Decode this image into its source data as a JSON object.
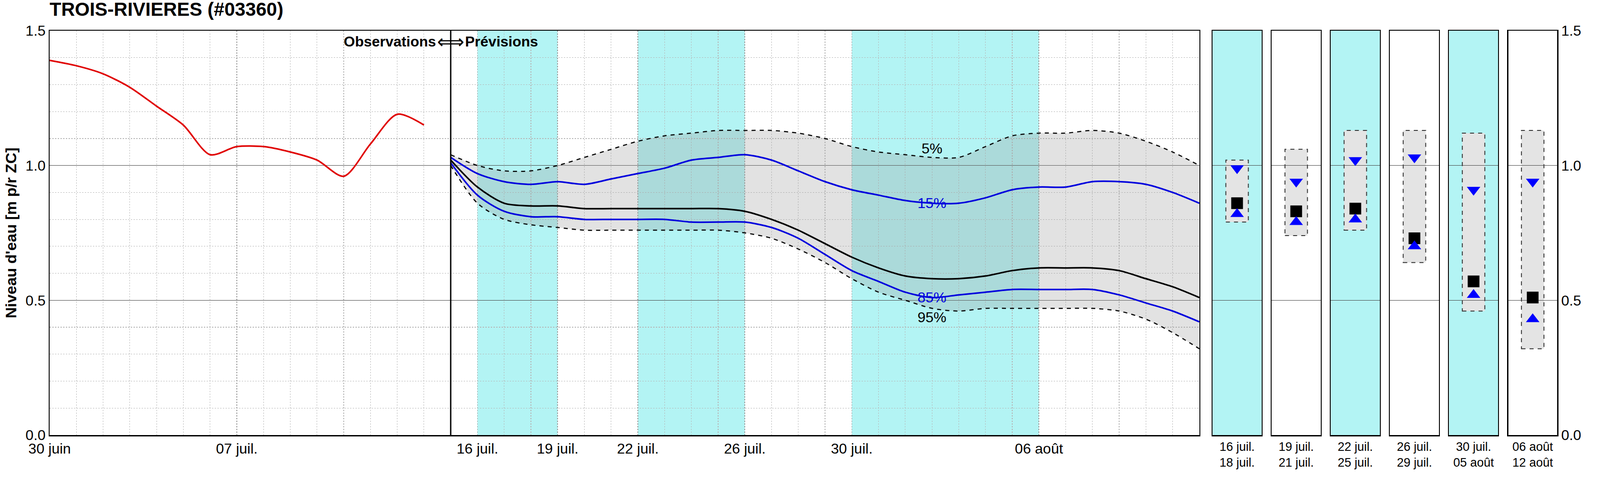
{
  "chart_data": {
    "type": "line",
    "title": "TROIS-RIVIERES (#03360)",
    "y_label": "Niveau d'eau [m p/r ZC]",
    "annotations": [
      {
        "text": "Observations ⟺ Prévisions"
      }
    ],
    "categories": [
      "30 juin",
      null,
      null,
      null,
      null,
      null,
      null,
      "07 juil.",
      null,
      null,
      null,
      null,
      null,
      null,
      null,
      null,
      "16 juil.",
      null,
      null,
      "19 juil.",
      null,
      null,
      "22 juil.",
      null,
      null,
      null,
      "26 juil.",
      null,
      null,
      null,
      "30 juil.",
      null,
      null,
      null,
      null,
      null,
      null,
      "06 août",
      null,
      null,
      null,
      null,
      null,
      null
    ],
    "ylim": [
      0,
      1.5
    ],
    "yticks": [
      {
        "value": 0,
        "label": "0.0"
      },
      {
        "value": 0.5,
        "label": "0.5"
      },
      {
        "value": 1,
        "label": "1.0"
      },
      {
        "value": 1.5,
        "label": "1.5"
      }
    ],
    "yticks_minor": [
      0.1,
      0.2,
      0.3,
      0.4,
      0.6,
      0.7,
      0.8,
      0.9,
      1.1,
      1.2,
      1.3,
      1.4
    ],
    "grid": true,
    "bands": [
      {
        "start": "16 juil.",
        "end": "19 juil.",
        "color": "#b3f4f4"
      },
      {
        "start": "22 juil.",
        "end": "26 juil.",
        "color": "#b3f4f4"
      },
      {
        "start": "30 juil.",
        "end": "06 août",
        "color": "#b3f4f4"
      }
    ],
    "area": {
      "from": "95%",
      "to": "5%",
      "color": "rgba(150,150,150,0.28)"
    },
    "series": [
      {
        "color": "#e00000",
        "line_style": "solid",
        "values": [
          1.39,
          1.37,
          1.34,
          1.29,
          1.22,
          1.15,
          1.04,
          1.07,
          1.07,
          1.05,
          1.02,
          0.96,
          1.08,
          1.19,
          1.15,
          null,
          null,
          null,
          null,
          null,
          null,
          null,
          null,
          null,
          null,
          null,
          null,
          null,
          null,
          null,
          null,
          null,
          null,
          null,
          null,
          null,
          null,
          null,
          null,
          null,
          null,
          null,
          null,
          null
        ]
      },
      {
        "name": "95%",
        "color": "#000000",
        "line_style": "dashed",
        "values": [
          null,
          null,
          null,
          null,
          null,
          null,
          null,
          null,
          null,
          null,
          null,
          null,
          null,
          null,
          null,
          1.0,
          0.86,
          0.8,
          0.78,
          0.77,
          0.76,
          0.76,
          0.76,
          0.76,
          0.76,
          0.76,
          0.75,
          0.73,
          0.69,
          0.64,
          0.58,
          0.53,
          0.5,
          0.47,
          0.46,
          0.47,
          0.47,
          0.47,
          0.47,
          0.47,
          0.46,
          0.43,
          0.38,
          0.32
        ]
      },
      {
        "name": "5%",
        "color": "#000000",
        "line_style": "dashed",
        "values": [
          null,
          null,
          null,
          null,
          null,
          null,
          null,
          null,
          null,
          null,
          null,
          null,
          null,
          null,
          null,
          1.04,
          1.0,
          0.98,
          0.98,
          1.0,
          1.03,
          1.06,
          1.09,
          1.11,
          1.12,
          1.13,
          1.13,
          1.13,
          1.12,
          1.1,
          1.07,
          1.05,
          1.04,
          1.03,
          1.03,
          1.07,
          1.11,
          1.12,
          1.12,
          1.13,
          1.12,
          1.09,
          1.05,
          1.0
        ]
      },
      {
        "name": "15%",
        "color": "#0000dd",
        "line_style": "solid",
        "values": [
          null,
          null,
          null,
          null,
          null,
          null,
          null,
          null,
          null,
          null,
          null,
          null,
          null,
          null,
          null,
          1.03,
          0.97,
          0.94,
          0.93,
          0.94,
          0.93,
          0.95,
          0.97,
          0.99,
          1.02,
          1.03,
          1.04,
          1.02,
          0.98,
          0.94,
          0.91,
          0.89,
          0.87,
          0.86,
          0.86,
          0.88,
          0.91,
          0.92,
          0.92,
          0.94,
          0.94,
          0.93,
          0.9,
          0.86
        ]
      },
      {
        "color": "#000000",
        "line_style": "solid",
        "values": [
          null,
          null,
          null,
          null,
          null,
          null,
          null,
          null,
          null,
          null,
          null,
          null,
          null,
          null,
          null,
          1.02,
          0.92,
          0.86,
          0.85,
          0.85,
          0.84,
          0.84,
          0.84,
          0.84,
          0.84,
          0.84,
          0.83,
          0.8,
          0.76,
          0.71,
          0.66,
          0.62,
          0.59,
          0.58,
          0.58,
          0.59,
          0.61,
          0.62,
          0.62,
          0.62,
          0.61,
          0.58,
          0.55,
          0.51
        ]
      },
      {
        "name": "85%",
        "color": "#0000dd",
        "line_style": "solid",
        "values": [
          null,
          null,
          null,
          null,
          null,
          null,
          null,
          null,
          null,
          null,
          null,
          null,
          null,
          null,
          null,
          1.01,
          0.89,
          0.83,
          0.81,
          0.81,
          0.8,
          0.8,
          0.8,
          0.8,
          0.79,
          0.79,
          0.79,
          0.77,
          0.73,
          0.67,
          0.61,
          0.57,
          0.53,
          0.51,
          0.52,
          0.53,
          0.54,
          0.54,
          0.54,
          0.54,
          0.52,
          0.49,
          0.46,
          0.42
        ]
      }
    ],
    "summary": {
      "periods": [
        [
          "16 juil.",
          "18 juil."
        ],
        [
          "19 juil.",
          "21 juil."
        ],
        [
          "22 juil.",
          "25 juil."
        ],
        [
          "26 juil.",
          "29 juil."
        ],
        [
          "30 juil.",
          "05 août"
        ],
        [
          "06 août",
          "12 août"
        ]
      ],
      "colors": [
        "#b3f4f4",
        "#ffffff",
        "#b3f4f4",
        "#ffffff",
        "#b3f4f4",
        "#ffffff"
      ],
      "range_min": [
        0.79,
        0.74,
        0.76,
        0.64,
        0.46,
        0.32
      ],
      "range_max": [
        1.02,
        1.06,
        1.13,
        1.13,
        1.12,
        1.13
      ],
      "range_color": "#e4e4e4",
      "series": [
        {
          "color": "#0000ff",
          "marker": "triangle-down",
          "values": [
            0.99,
            0.94,
            1.02,
            1.03,
            0.91,
            0.94
          ]
        },
        {
          "color": "#000000",
          "marker": "square",
          "values": [
            0.86,
            0.83,
            0.84,
            0.73,
            0.57,
            0.51
          ]
        },
        {
          "color": "#0000ff",
          "marker": "triangle-up",
          "values": [
            0.82,
            0.79,
            0.8,
            0.7,
            0.52,
            0.43
          ]
        }
      ]
    }
  }
}
